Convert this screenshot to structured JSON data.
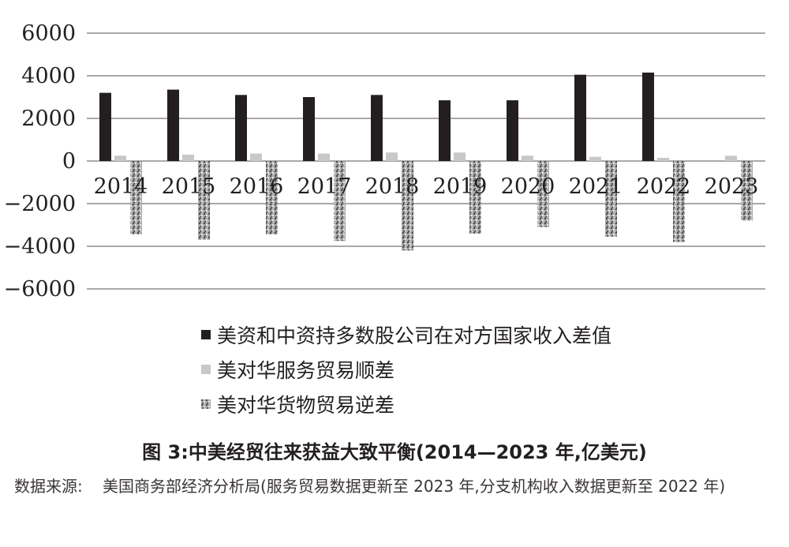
{
  "chart_data": {
    "type": "bar",
    "categories": [
      "2014",
      "2015",
      "2016",
      "2017",
      "2018",
      "2019",
      "2020",
      "2021",
      "2022",
      "2023"
    ],
    "series": [
      {
        "name": "美资和中资持多数股公司在对方国家收入差值",
        "values": [
          3200,
          3350,
          3100,
          3000,
          3100,
          2850,
          2850,
          4050,
          4150,
          null
        ],
        "color": "#231f20"
      },
      {
        "name": "美对华服务贸易顺差",
        "values": [
          250,
          300,
          350,
          350,
          400,
          400,
          250,
          200,
          150,
          250
        ],
        "color": "#c8c8c8"
      },
      {
        "name": "美对华货物贸易逆差",
        "values": [
          -3450,
          -3700,
          -3450,
          -3750,
          -4200,
          -3400,
          -3100,
          -3550,
          -3800,
          -2800
        ],
        "color": "#9a9a9a",
        "pattern": "speckled"
      }
    ],
    "y_ticks": [
      "6000",
      "4000",
      "2000",
      "0",
      "−2000",
      "−4000",
      "−6000"
    ],
    "ylim": [
      -6000,
      6000
    ],
    "grid": true,
    "legend_position": "bottom"
  },
  "caption": "图 3:中美经贸往来获益大致平衡(2014—2023 年,亿美元)",
  "source": {
    "label": "数据来源:",
    "text": "美国商务部经济分析局(服务贸易数据更新至 2023 年,分支机构收入数据更新至 2022 年)"
  }
}
